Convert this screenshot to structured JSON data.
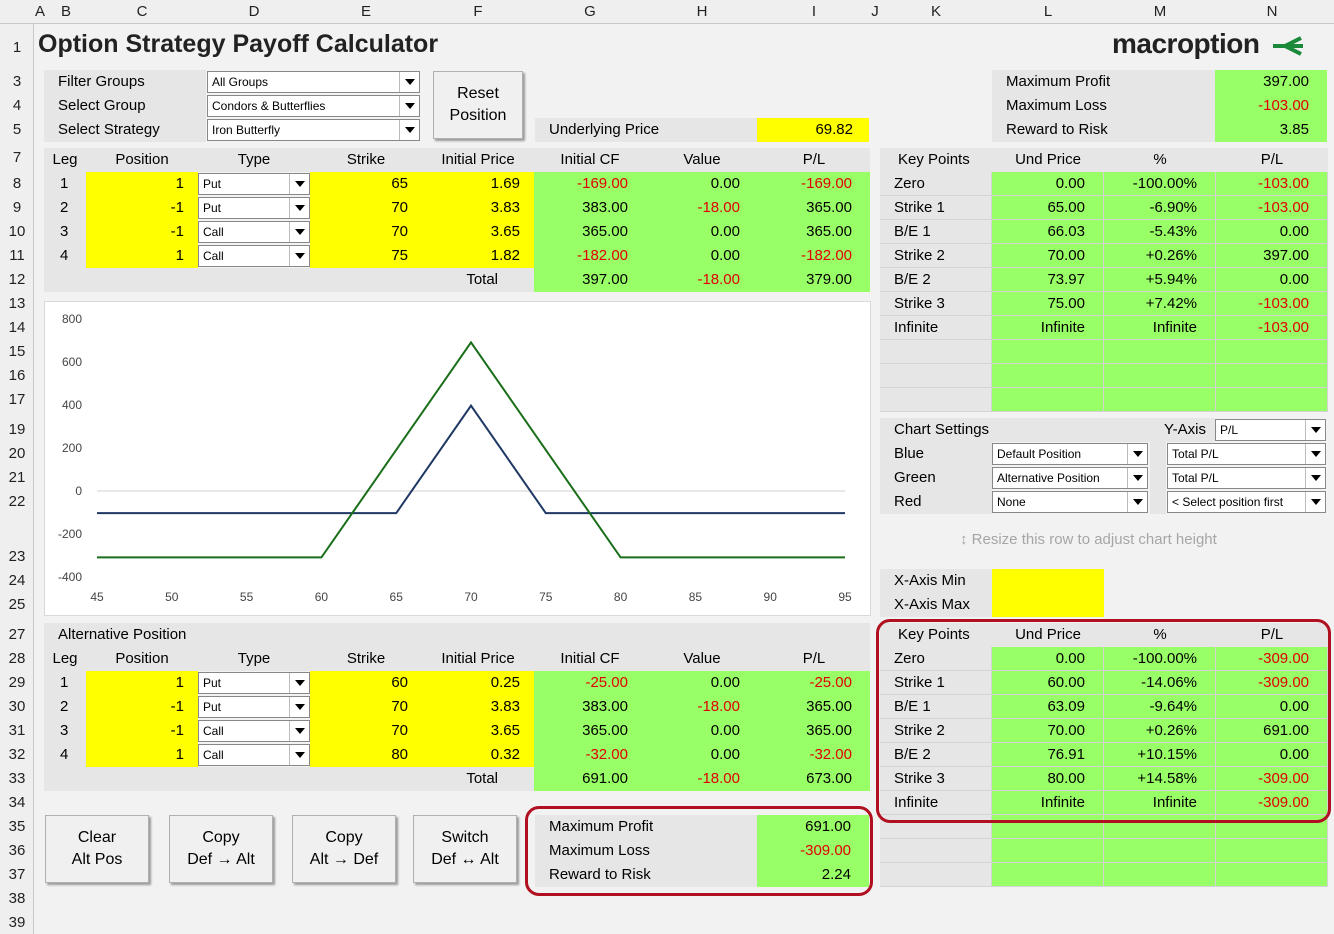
{
  "columns": [
    "A",
    "B",
    "C",
    "D",
    "E",
    "F",
    "G",
    "H",
    "I",
    "J",
    "K",
    "L",
    "M",
    "N"
  ],
  "rows": [
    "1",
    "3",
    "4",
    "5",
    "7",
    "8",
    "9",
    "10",
    "11",
    "12",
    "13",
    "14",
    "15",
    "16",
    "17",
    "19",
    "20",
    "21",
    "22",
    "23",
    "24",
    "25",
    "27",
    "28",
    "29",
    "30",
    "31",
    "32",
    "33",
    "34",
    "35",
    "36",
    "37",
    "38",
    "39"
  ],
  "title": "Option Strategy Payoff Calculator",
  "logo": {
    "text": "macroption",
    "accent_color": "#1a8a3a"
  },
  "filters": {
    "filter_groups_label": "Filter Groups",
    "filter_groups_value": "All Groups",
    "select_group_label": "Select Group",
    "select_group_value": "Condors & Butterflies",
    "select_strategy_label": "Select Strategy",
    "select_strategy_value": "Iron Butterfly"
  },
  "reset_button": "Reset\nPosition",
  "underlying": {
    "label": "Underlying Price",
    "value": "69.82"
  },
  "summary_top": {
    "max_profit_label": "Maximum Profit",
    "max_profit": "397.00",
    "max_loss_label": "Maximum Loss",
    "max_loss": "-103.00",
    "rr_label": "Reward to Risk",
    "rr": "3.85"
  },
  "legs_header": [
    "Leg",
    "Position",
    "Type",
    "Strike",
    "Initial Price",
    "Initial CF",
    "Value",
    "P/L"
  ],
  "legs": [
    {
      "leg": "1",
      "position": "1",
      "type": "Put",
      "strike": "65",
      "price": "1.69",
      "cf": "-169.00",
      "value": "0.00",
      "pl": "-169.00"
    },
    {
      "leg": "2",
      "position": "-1",
      "type": "Put",
      "strike": "70",
      "price": "3.83",
      "cf": "383.00",
      "value": "-18.00",
      "pl": "365.00"
    },
    {
      "leg": "3",
      "position": "-1",
      "type": "Call",
      "strike": "70",
      "price": "3.65",
      "cf": "365.00",
      "value": "0.00",
      "pl": "365.00"
    },
    {
      "leg": "4",
      "position": "1",
      "type": "Call",
      "strike": "75",
      "price": "1.82",
      "cf": "-182.00",
      "value": "0.00",
      "pl": "-182.00"
    }
  ],
  "legs_total": {
    "label": "Total",
    "cf": "397.00",
    "value": "-18.00",
    "pl": "379.00"
  },
  "keypoints_header": [
    "Key Points",
    "Und Price",
    "%",
    "P/L"
  ],
  "keypoints": [
    {
      "name": "Zero",
      "und": "0.00",
      "pct": "-100.00%",
      "pl": "-103.00"
    },
    {
      "name": "Strike 1",
      "und": "65.00",
      "pct": "-6.90%",
      "pl": "-103.00"
    },
    {
      "name": "B/E 1",
      "und": "66.03",
      "pct": "-5.43%",
      "pl": "0.00"
    },
    {
      "name": "Strike 2",
      "und": "70.00",
      "pct": "+0.26%",
      "pl": "397.00"
    },
    {
      "name": "B/E 2",
      "und": "73.97",
      "pct": "+5.94%",
      "pl": "0.00"
    },
    {
      "name": "Strike 3",
      "und": "75.00",
      "pct": "+7.42%",
      "pl": "-103.00"
    },
    {
      "name": "Infinite",
      "und": "Infinite",
      "pct": "Infinite",
      "pl": "-103.00"
    }
  ],
  "chart_settings": {
    "label": "Chart Settings",
    "yaxis_label": "Y-Axis",
    "yaxis_value": "P/L",
    "blue_label": "Blue",
    "blue_pos": "Default Position",
    "blue_val": "Total P/L",
    "green_label": "Green",
    "green_pos": "Alternative Position",
    "green_val": "Total P/L",
    "red_label": "Red",
    "red_pos": "None",
    "red_val": "< Select position first"
  },
  "resize_hint": "Resize this row to adjust chart height",
  "xaxis": {
    "min_label": "X-Axis Min",
    "max_label": "X-Axis Max"
  },
  "alt_title": "Alternative Position",
  "alt_legs": [
    {
      "leg": "1",
      "position": "1",
      "type": "Put",
      "strike": "60",
      "price": "0.25",
      "cf": "-25.00",
      "value": "0.00",
      "pl": "-25.00"
    },
    {
      "leg": "2",
      "position": "-1",
      "type": "Put",
      "strike": "70",
      "price": "3.83",
      "cf": "383.00",
      "value": "-18.00",
      "pl": "365.00"
    },
    {
      "leg": "3",
      "position": "-1",
      "type": "Call",
      "strike": "70",
      "price": "3.65",
      "cf": "365.00",
      "value": "0.00",
      "pl": "365.00"
    },
    {
      "leg": "4",
      "position": "1",
      "type": "Call",
      "strike": "80",
      "price": "0.32",
      "cf": "-32.00",
      "value": "0.00",
      "pl": "-32.00"
    }
  ],
  "alt_total": {
    "label": "Total",
    "cf": "691.00",
    "value": "-18.00",
    "pl": "673.00"
  },
  "alt_keypoints": [
    {
      "name": "Zero",
      "und": "0.00",
      "pct": "-100.00%",
      "pl": "-309.00"
    },
    {
      "name": "Strike 1",
      "und": "60.00",
      "pct": "-14.06%",
      "pl": "-309.00"
    },
    {
      "name": "B/E 1",
      "und": "63.09",
      "pct": "-9.64%",
      "pl": "0.00"
    },
    {
      "name": "Strike 2",
      "und": "70.00",
      "pct": "+0.26%",
      "pl": "691.00"
    },
    {
      "name": "B/E 2",
      "und": "76.91",
      "pct": "+10.15%",
      "pl": "0.00"
    },
    {
      "name": "Strike 3",
      "und": "80.00",
      "pct": "+14.58%",
      "pl": "-309.00"
    },
    {
      "name": "Infinite",
      "und": "Infinite",
      "pct": "Infinite",
      "pl": "-309.00"
    }
  ],
  "buttons": {
    "clear": "Clear\nAlt Pos",
    "copy_def_alt": "Copy\nDef → Alt",
    "copy_alt_def": "Copy\nAlt → Def",
    "switch": "Switch\nDef ↔ Alt"
  },
  "summary_alt": {
    "max_profit_label": "Maximum Profit",
    "max_profit": "691.00",
    "max_loss_label": "Maximum Loss",
    "max_loss": "-309.00",
    "rr_label": "Reward to Risk",
    "rr": "2.24"
  },
  "chart_data": {
    "type": "line",
    "xlim": [
      45,
      95
    ],
    "ylim": [
      -400,
      800
    ],
    "xticks": [
      "45",
      "50",
      "55",
      "60",
      "65",
      "70",
      "75",
      "80",
      "85",
      "90",
      "95"
    ],
    "yticks": [
      "800",
      "600",
      "400",
      "200",
      "0",
      "-200",
      "-400"
    ],
    "series": [
      {
        "color": "#1f3864",
        "x": [
          45,
          65,
          70,
          75,
          95
        ],
        "y": [
          -103,
          -103,
          397,
          -103,
          -103
        ]
      },
      {
        "color": "#1a6e1a",
        "x": [
          45,
          60,
          70,
          80,
          95
        ],
        "y": [
          -309,
          -309,
          691,
          -309,
          -309
        ]
      }
    ]
  }
}
